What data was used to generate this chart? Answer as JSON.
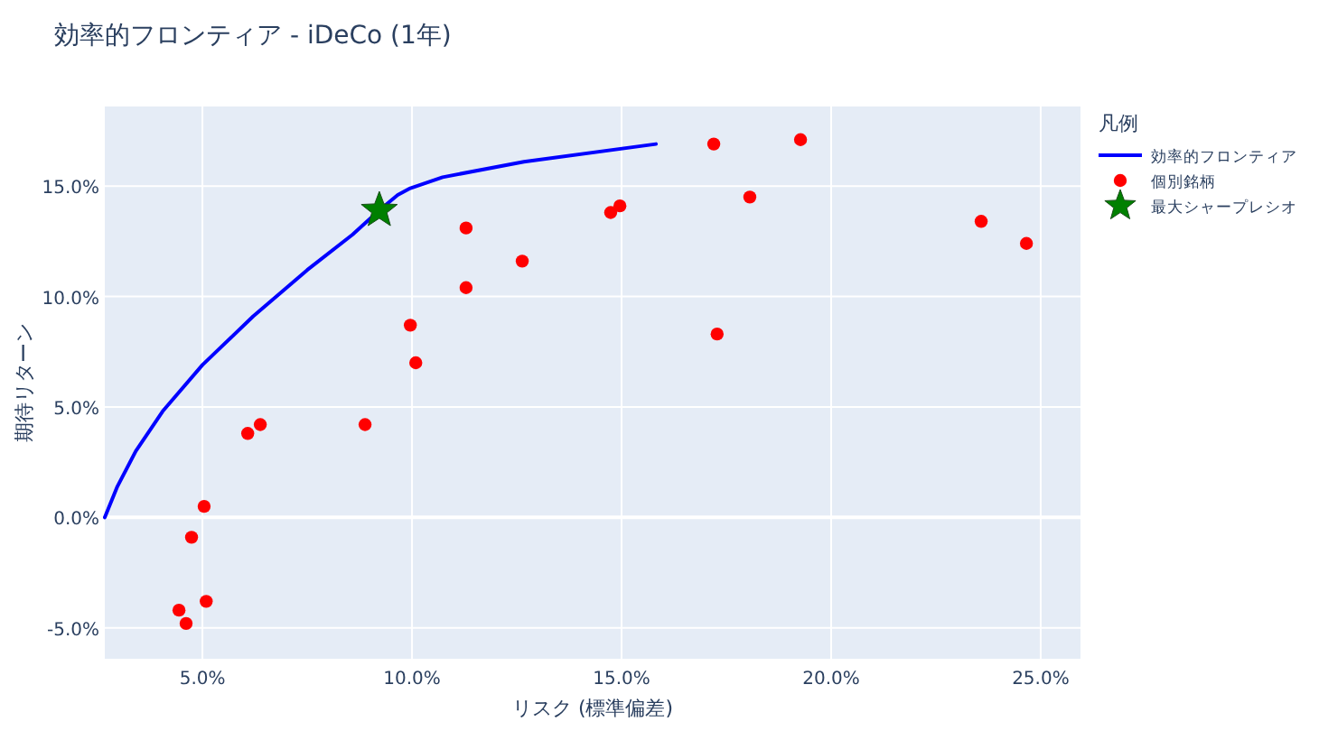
{
  "chart_data": {
    "type": "scatter",
    "title": "効率的フロンティア - iDeCo (1年)",
    "xlabel": "リスク (標準偏差)",
    "ylabel": "期待リターン",
    "legend_title": "凡例",
    "legend": "right",
    "grid": true,
    "xlim": [
      2.67,
      25.95
    ],
    "ylim": [
      -6.4,
      18.6
    ],
    "xticks": [
      {
        "value": 5,
        "label": "5.0%"
      },
      {
        "value": 10,
        "label": "10.0%"
      },
      {
        "value": 15,
        "label": "15.0%"
      },
      {
        "value": 20,
        "label": "20.0%"
      },
      {
        "value": 25,
        "label": "25.0%"
      }
    ],
    "yticks": [
      {
        "value": -5,
        "label": "-5.0%"
      },
      {
        "value": 0,
        "label": "0.0%"
      },
      {
        "value": 5,
        "label": "5.0%"
      },
      {
        "value": 10,
        "label": "10.0%"
      },
      {
        "value": 15,
        "label": "15.0%"
      }
    ],
    "series": [
      {
        "name": "効率的フロンティア",
        "type": "line",
        "color": "#0000ff",
        "marker": "none",
        "x": [
          2.67,
          2.97,
          3.41,
          4.05,
          5.0,
          6.21,
          7.5,
          8.58,
          9.22,
          9.66,
          9.96,
          10.73,
          12.67,
          15.82
        ],
        "values": [
          0,
          1.4,
          3.0,
          4.8,
          6.9,
          9.1,
          11.2,
          12.8,
          13.9,
          14.6,
          14.9,
          15.4,
          16.1,
          16.9
        ]
      },
      {
        "name": "個別銘柄",
        "color": "#ff0000",
        "marker": "circle",
        "x": [
          4.44,
          4.61,
          4.74,
          5.04,
          5.09,
          6.08,
          6.38,
          8.88,
          9.96,
          10.09,
          11.29,
          11.29,
          12.63,
          14.74,
          14.96,
          17.2,
          17.28,
          18.06,
          19.27,
          23.58,
          24.66
        ],
        "values": [
          -4.2,
          -4.8,
          -0.9,
          0.5,
          -3.8,
          3.8,
          4.2,
          4.2,
          8.7,
          7.0,
          13.1,
          10.4,
          11.6,
          13.8,
          14.1,
          16.9,
          8.3,
          14.5,
          17.1,
          13.4,
          12.4
        ]
      },
      {
        "name": "最大シャープレシオ",
        "color": "#008000",
        "marker": "star",
        "x": [
          9.22
        ],
        "values": [
          13.9
        ]
      }
    ]
  }
}
